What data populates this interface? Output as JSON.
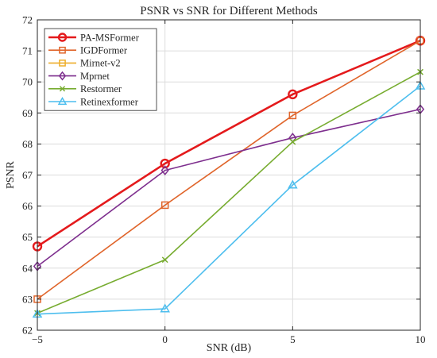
{
  "chart_data": {
    "type": "line",
    "title": "PSNR vs SNR for Different Methods",
    "xlabel": "SNR (dB)",
    "ylabel": "PSNR",
    "x": [
      -5,
      0,
      5,
      10
    ],
    "xlim": [
      -5,
      10
    ],
    "ylim": [
      62,
      72
    ],
    "xticks": [
      -5,
      0,
      5,
      10
    ],
    "xtick_labels": [
      "−5",
      "0",
      "5",
      "10"
    ],
    "yticks": [
      62,
      63,
      64,
      65,
      66,
      67,
      68,
      69,
      70,
      71,
      72
    ],
    "grid": true,
    "legend_position": "top-left",
    "series": [
      {
        "name": "PA-MSFormer",
        "values": [
          64.7,
          67.37,
          69.6,
          71.33
        ],
        "color": "#e41a1c",
        "marker": "circle",
        "bold": true
      },
      {
        "name": "IGDFormer",
        "values": [
          63.0,
          66.03,
          68.92,
          71.33
        ],
        "color": "#e0652b",
        "marker": "square",
        "bold": false
      },
      {
        "name": "Mirnet-v2",
        "values": [
          null,
          null,
          null,
          null
        ],
        "color": "#eeae2a",
        "marker": "square",
        "bold": false
      },
      {
        "name": "Mprnet",
        "values": [
          64.06,
          67.15,
          68.2,
          69.12
        ],
        "color": "#7e2f8e",
        "marker": "diamond",
        "bold": false
      },
      {
        "name": "Restormer",
        "values": [
          62.55,
          64.27,
          68.07,
          70.32
        ],
        "color": "#77ac30",
        "marker": "x",
        "bold": false
      },
      {
        "name": "Retinexformer",
        "values": [
          62.52,
          62.69,
          66.68,
          69.87
        ],
        "color": "#4dbeee",
        "marker": "triangle",
        "bold": false
      }
    ]
  }
}
